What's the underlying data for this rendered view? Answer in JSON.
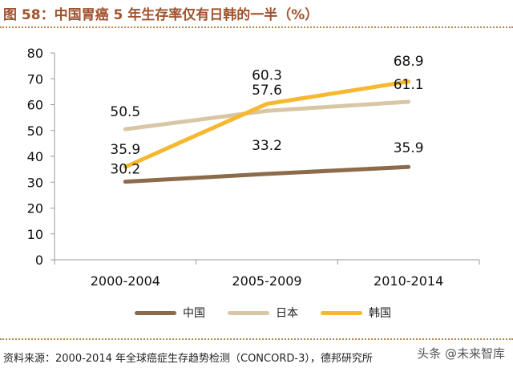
{
  "title": "图 58：中国胃癌 5 年生存率仅有日韩的一半（%）",
  "source": "资料来源：2000-2014 年全球癌症生存趋势检测（CONCORD-3），德邦研究所",
  "watermark": "头条 @未来智库",
  "chart_data": {
    "type": "line",
    "categories": [
      "2000-2004",
      "2005-2009",
      "2010-2014"
    ],
    "ylim": [
      0,
      80
    ],
    "yticks": [
      "0",
      "10",
      "20",
      "30",
      "40",
      "50",
      "60",
      "70",
      "80"
    ],
    "grid": false,
    "legend_position": "bottom",
    "series": [
      {
        "name": "中国",
        "color": "#8c6b4a",
        "values": [
          30.2,
          33.2,
          35.9
        ],
        "labels": [
          "30.2",
          "33.2",
          "35.9"
        ]
      },
      {
        "name": "日本",
        "color": "#d9c6a5",
        "values": [
          50.5,
          57.6,
          61.1
        ],
        "labels": [
          "50.5",
          "57.6",
          "61.1"
        ]
      },
      {
        "name": "韩国",
        "color": "#f5b82e",
        "values": [
          35.9,
          60.3,
          68.9
        ],
        "labels": [
          "35.9",
          "60.3",
          "68.9"
        ]
      }
    ]
  }
}
